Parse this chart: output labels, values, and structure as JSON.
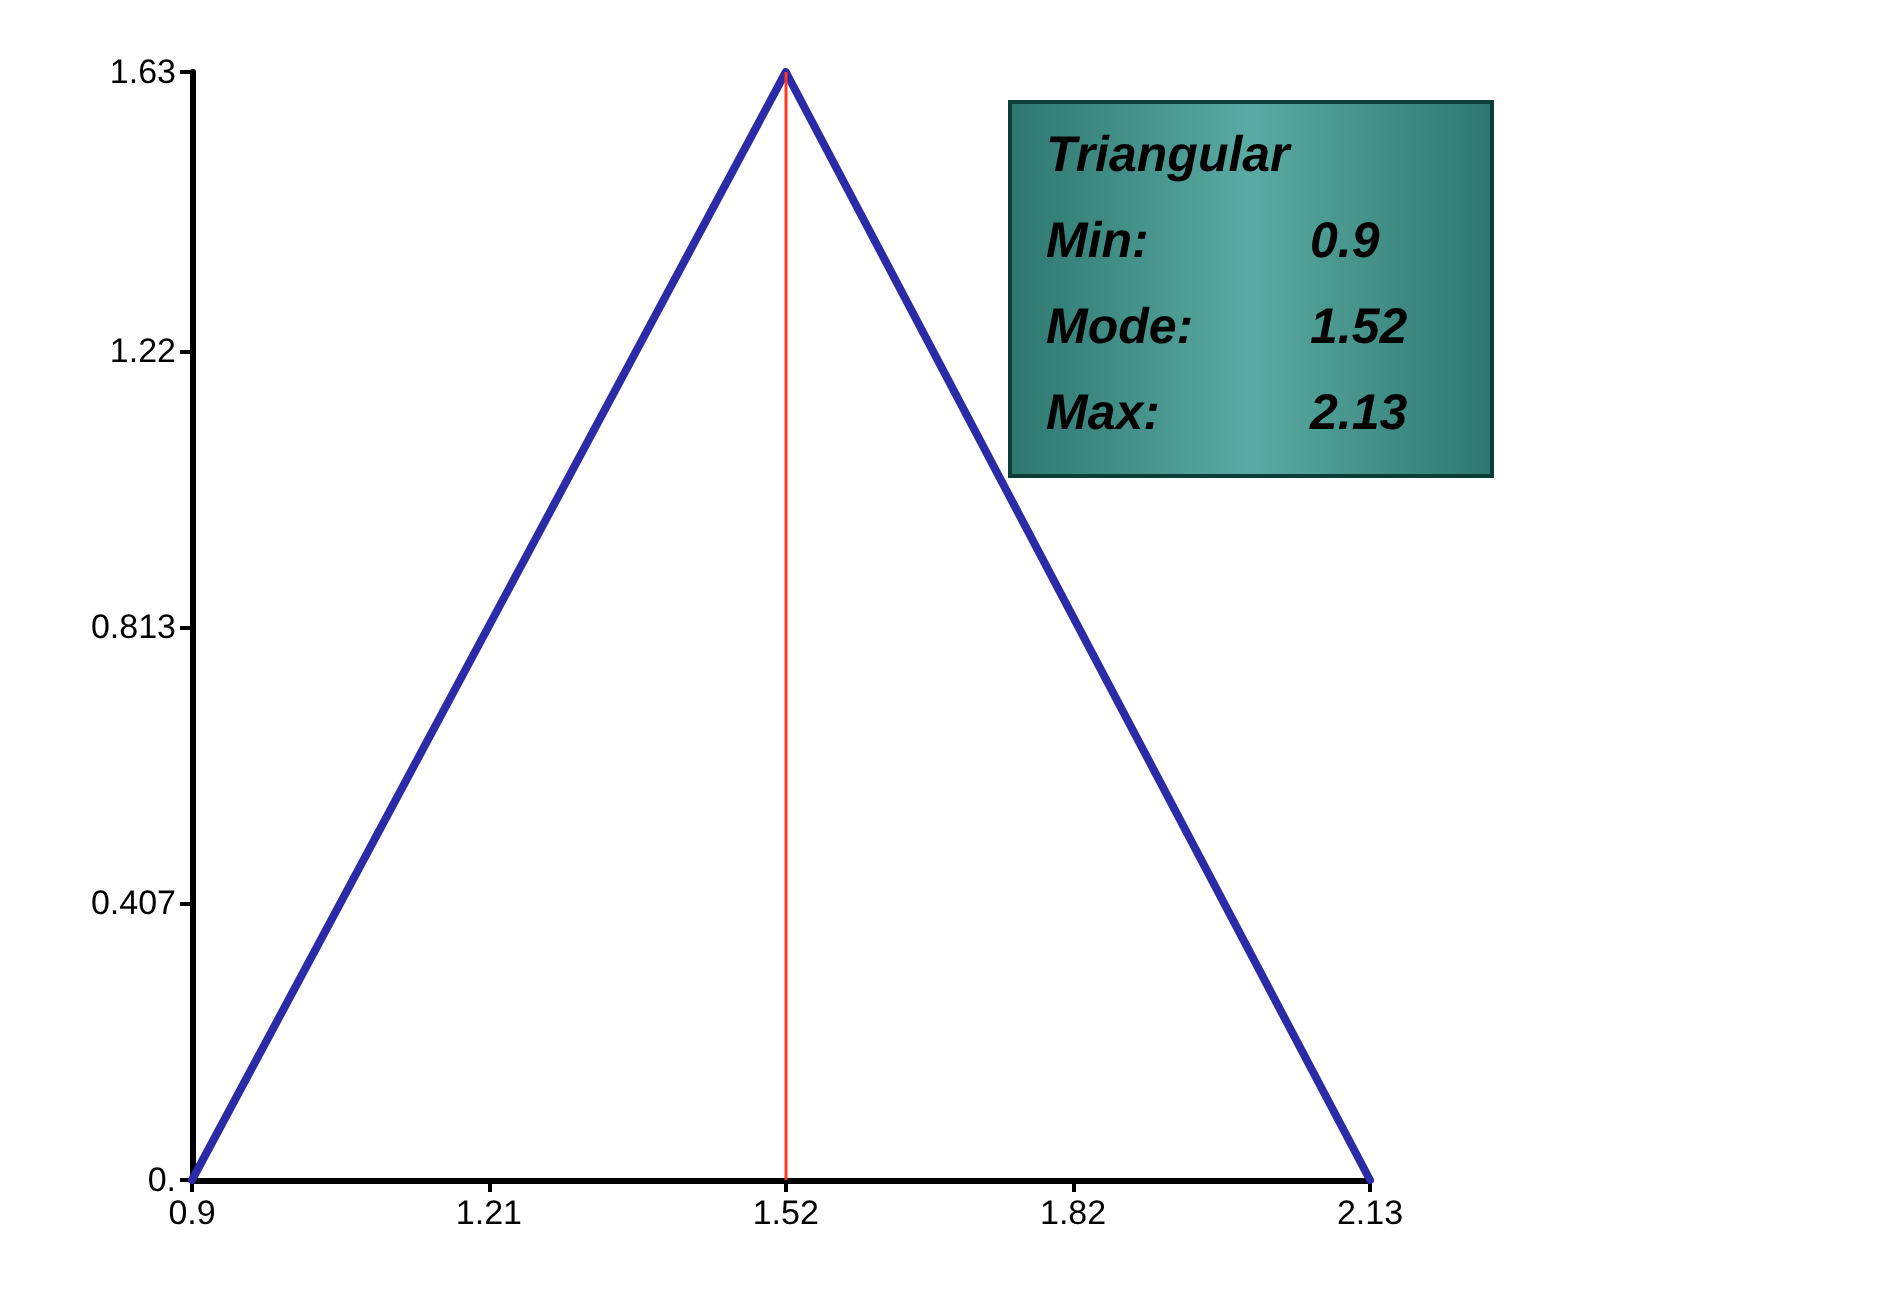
{
  "chart_data": {
    "type": "line",
    "x": [
      0.9,
      1.52,
      2.13
    ],
    "series": [
      {
        "color": "#2b2ba8",
        "values": [
          0,
          1.63,
          0
        ]
      }
    ],
    "xlim": [
      0.9,
      2.13
    ],
    "xticks": [
      0.9,
      1.21,
      1.52,
      1.82,
      2.13
    ],
    "ylim": [
      0,
      1.63
    ],
    "yticks": [
      {
        "value": 0,
        "label": "0."
      },
      0.407,
      0.813,
      1.22,
      1.63
    ],
    "ref_lines": [
      {
        "axis": "x",
        "value": 1.52,
        "color": "#ff3b1f"
      }
    ],
    "annotations": [
      "Triangular",
      "Min:",
      "0.9",
      "Mode:",
      "1.52",
      "Max:",
      "2.13"
    ],
    "grid": false,
    "marker": "none",
    "line_style": "solid"
  }
}
